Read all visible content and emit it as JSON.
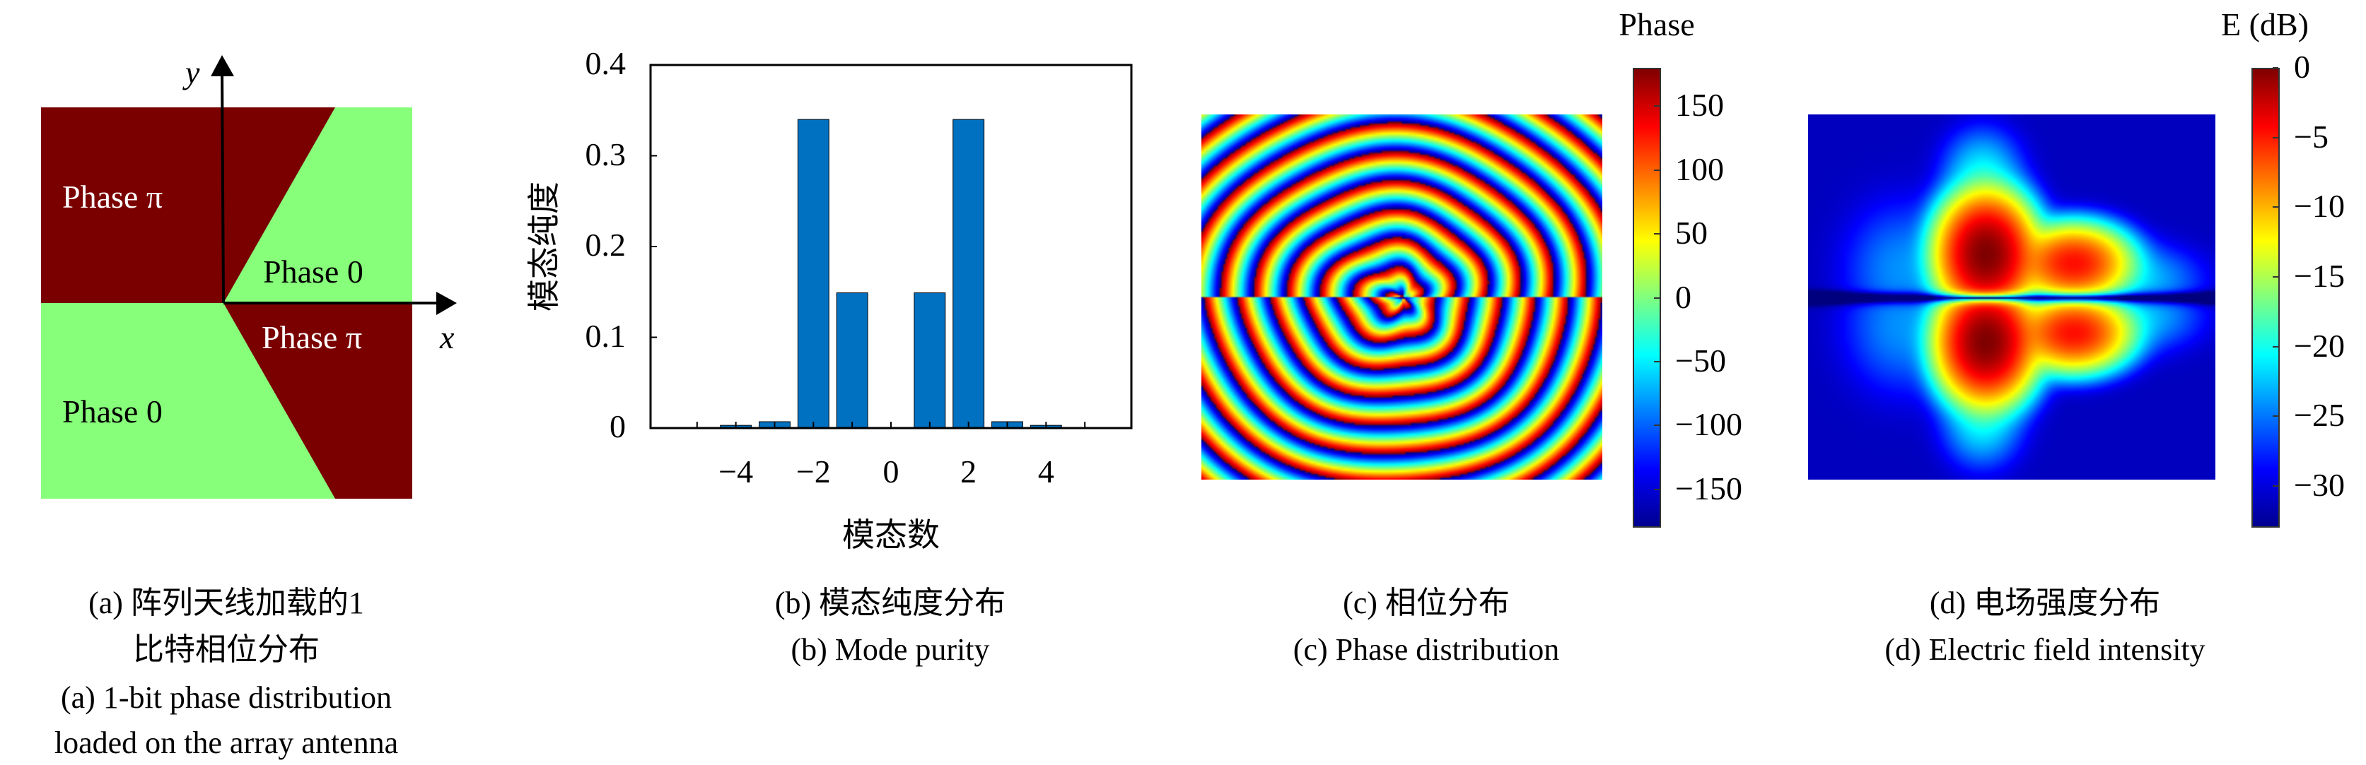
{
  "panel_a": {
    "axis_x": "x",
    "axis_y": "y",
    "regions": [
      "Phase π",
      "Phase 0",
      "Phase π",
      "Phase 0"
    ],
    "colors": {
      "phase_pi": "#7a0000",
      "phase_0": "#88ff7a"
    },
    "caption": [
      "(a) 阵列天线加载的1",
      "比特相位分布",
      "(a) 1-bit phase distribution",
      "loaded on the array antenna"
    ]
  },
  "panel_b": {
    "caption": [
      "(b) 模态纯度分布",
      "(b) Mode purity"
    ]
  },
  "panel_c": {
    "colorbar_title": "Phase",
    "colorbar_ticks": [
      "150",
      "100",
      "50",
      "0",
      "−50",
      "−100",
      "−150"
    ],
    "caption": [
      "(c) 相位分布",
      "(c) Phase distribution"
    ]
  },
  "panel_d": {
    "colorbar_title": "E (dB)",
    "colorbar_ticks": [
      "0",
      "−5",
      "−10",
      "−15",
      "−20",
      "−25",
      "−30"
    ],
    "caption": [
      "(d) 电场强度分布",
      "(d) Electric field intensity"
    ]
  },
  "chart_data": [
    {
      "type": "bar",
      "title": "",
      "xlabel": "模态数",
      "ylabel": "模态纯度",
      "categories": [
        -5,
        -4,
        -3,
        -2,
        -1,
        0,
        1,
        2,
        3,
        4,
        5
      ],
      "values": [
        0,
        0.003,
        0.007,
        0.34,
        0.149,
        0,
        0.149,
        0.34,
        0.007,
        0.003,
        0
      ],
      "xlim": [
        -6.2,
        6.2
      ],
      "ylim": [
        0,
        0.4
      ],
      "xticklabels": [
        "−4",
        "−2",
        "0",
        "2",
        "4"
      ],
      "xtick_values": [
        -4,
        -2,
        0,
        2,
        4
      ],
      "yticklabels": [
        "0",
        "0.1",
        "0.2",
        "0.3",
        "0.4"
      ],
      "ytick_values": [
        0,
        0.1,
        0.2,
        0.3,
        0.4
      ],
      "bar_color": "#0070c0",
      "grid": false
    },
    {
      "type": "heatmap",
      "title": "Phase",
      "colormap": "jet",
      "clim": [
        -180,
        180
      ],
      "colorbar_ticks": [
        150,
        100,
        50,
        0,
        -50,
        -100,
        -150
      ]
    },
    {
      "type": "heatmap",
      "title": "E (dB)",
      "colormap": "jet",
      "clim": [
        -33,
        0
      ],
      "colorbar_ticks": [
        0,
        -5,
        -10,
        -15,
        -20,
        -25,
        -30
      ]
    }
  ]
}
